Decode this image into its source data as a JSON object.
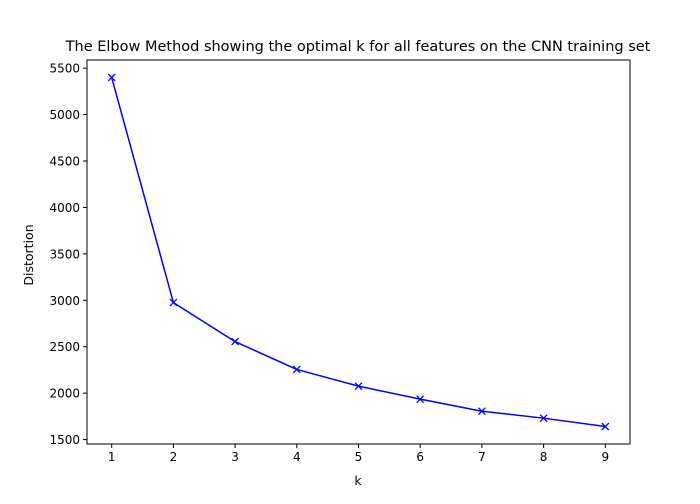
{
  "chart_data": {
    "type": "line",
    "title": "The Elbow Method showing the optimal k for all features on the CNN training set",
    "xlabel": "k",
    "ylabel": "Distortion",
    "x": [
      1,
      2,
      3,
      4,
      5,
      6,
      7,
      8,
      9
    ],
    "series": [
      {
        "values": [
          5400,
          2975,
          2555,
          2255,
          2075,
          1935,
          1805,
          1730,
          1640
        ],
        "color": "#0000ff",
        "marker": "x"
      }
    ],
    "xticks": [
      1,
      2,
      3,
      4,
      5,
      6,
      7,
      8,
      9
    ],
    "yticks": [
      1500,
      2000,
      2500,
      3000,
      3500,
      4000,
      4500,
      5000,
      5500
    ],
    "xlim": [
      0.6,
      9.4
    ],
    "ylim": [
      1452,
      5588
    ],
    "grid": false
  }
}
